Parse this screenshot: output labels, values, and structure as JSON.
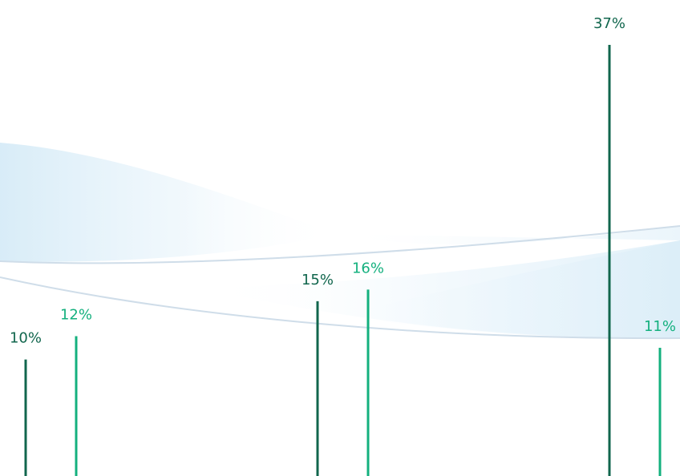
{
  "colors": {
    "series_dark": "#11664d",
    "series_light": "#14b07e",
    "wave_stroke": "#cfdde9",
    "wave_fill": "#d6ebf7"
  },
  "chart_data": {
    "type": "bar",
    "style": "lollipop-lines",
    "series": [
      {
        "values": [
          10,
          15,
          37
        ]
      },
      {
        "values": [
          12,
          16,
          11
        ]
      }
    ],
    "data_labels": [
      [
        "10%",
        "15%",
        "37%"
      ],
      [
        "12%",
        "16%",
        "11%"
      ]
    ],
    "unit": "%",
    "ylim": [
      0,
      40
    ],
    "grid": false,
    "legend": "none",
    "decoration": "light-blue wave bands in background"
  }
}
